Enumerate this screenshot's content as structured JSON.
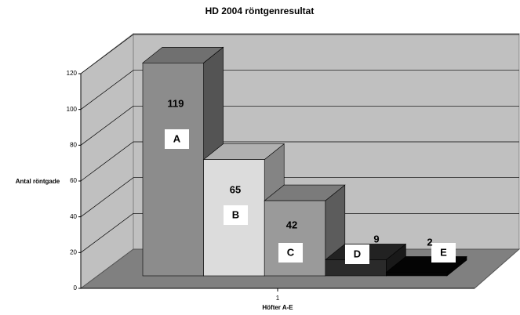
{
  "chart_data": {
    "type": "bar3d",
    "title": "HD 2004 röntgenresultat",
    "y_label": "Antal röntgade",
    "x_label": "Höfter A-E",
    "categories": [
      "1"
    ],
    "series": [
      {
        "name": "A",
        "color": "#8c8c8c",
        "values": [
          119
        ]
      },
      {
        "name": "B",
        "color": "#dcdcdc",
        "values": [
          65
        ]
      },
      {
        "name": "C",
        "color": "#9a9a9a",
        "values": [
          42
        ]
      },
      {
        "name": "D",
        "color": "#2a2a2a",
        "values": [
          9
        ]
      },
      {
        "name": "E",
        "color": "#050505",
        "values": [
          2
        ]
      }
    ],
    "ylim": [
      0,
      120
    ],
    "yticks": [
      0,
      20,
      40,
      60,
      80,
      100,
      120
    ],
    "grid": true
  }
}
